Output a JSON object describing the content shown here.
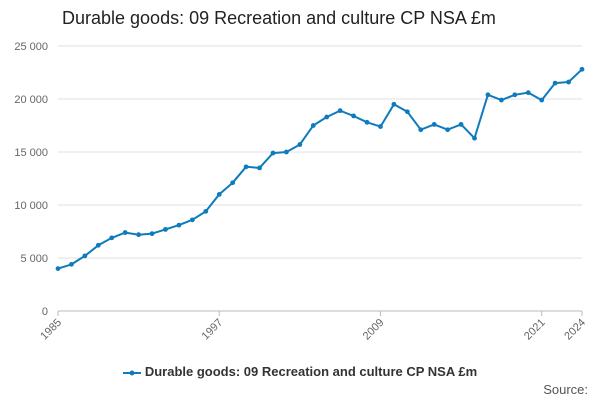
{
  "title": "Durable goods: 09 Recreation and culture CP NSA £m",
  "source_label": "Source:",
  "accent_color": "#0f7bbd",
  "chart_data": {
    "type": "line",
    "title": "Durable goods: 09 Recreation and culture CP NSA £m",
    "xlabel": "",
    "ylabel": "",
    "x_ticks": [
      1985,
      1997,
      2009,
      2021,
      2024
    ],
    "y_ticks": [
      0,
      5000,
      10000,
      15000,
      20000,
      25000
    ],
    "y_tick_labels": [
      "0",
      "5 000",
      "10 000",
      "15 000",
      "20 000",
      "25 000"
    ],
    "xlim": [
      1985,
      2024
    ],
    "ylim": [
      0,
      25000
    ],
    "grid": "horizontal",
    "legend_position": "bottom",
    "series": [
      {
        "name": "Durable goods: 09 Recreation and culture CP NSA £m",
        "color": "#0f7bbd",
        "x": [
          1985,
          1986,
          1987,
          1988,
          1989,
          1990,
          1991,
          1992,
          1993,
          1994,
          1995,
          1996,
          1997,
          1998,
          1999,
          2000,
          2001,
          2002,
          2003,
          2004,
          2005,
          2006,
          2007,
          2008,
          2009,
          2010,
          2011,
          2012,
          2013,
          2014,
          2015,
          2016,
          2017,
          2018,
          2019,
          2020,
          2021,
          2022,
          2023,
          2024
        ],
        "values": [
          4000,
          4400,
          5200,
          6200,
          6900,
          7400,
          7200,
          7300,
          7700,
          8100,
          8600,
          9400,
          11000,
          12100,
          13600,
          13500,
          14900,
          15000,
          15700,
          17500,
          18300,
          18900,
          18400,
          17800,
          17400,
          19500,
          18800,
          17100,
          17600,
          17100,
          17600,
          16300,
          20400,
          19900,
          20400,
          20600,
          19900,
          21500,
          21600,
          22800
        ]
      }
    ]
  }
}
